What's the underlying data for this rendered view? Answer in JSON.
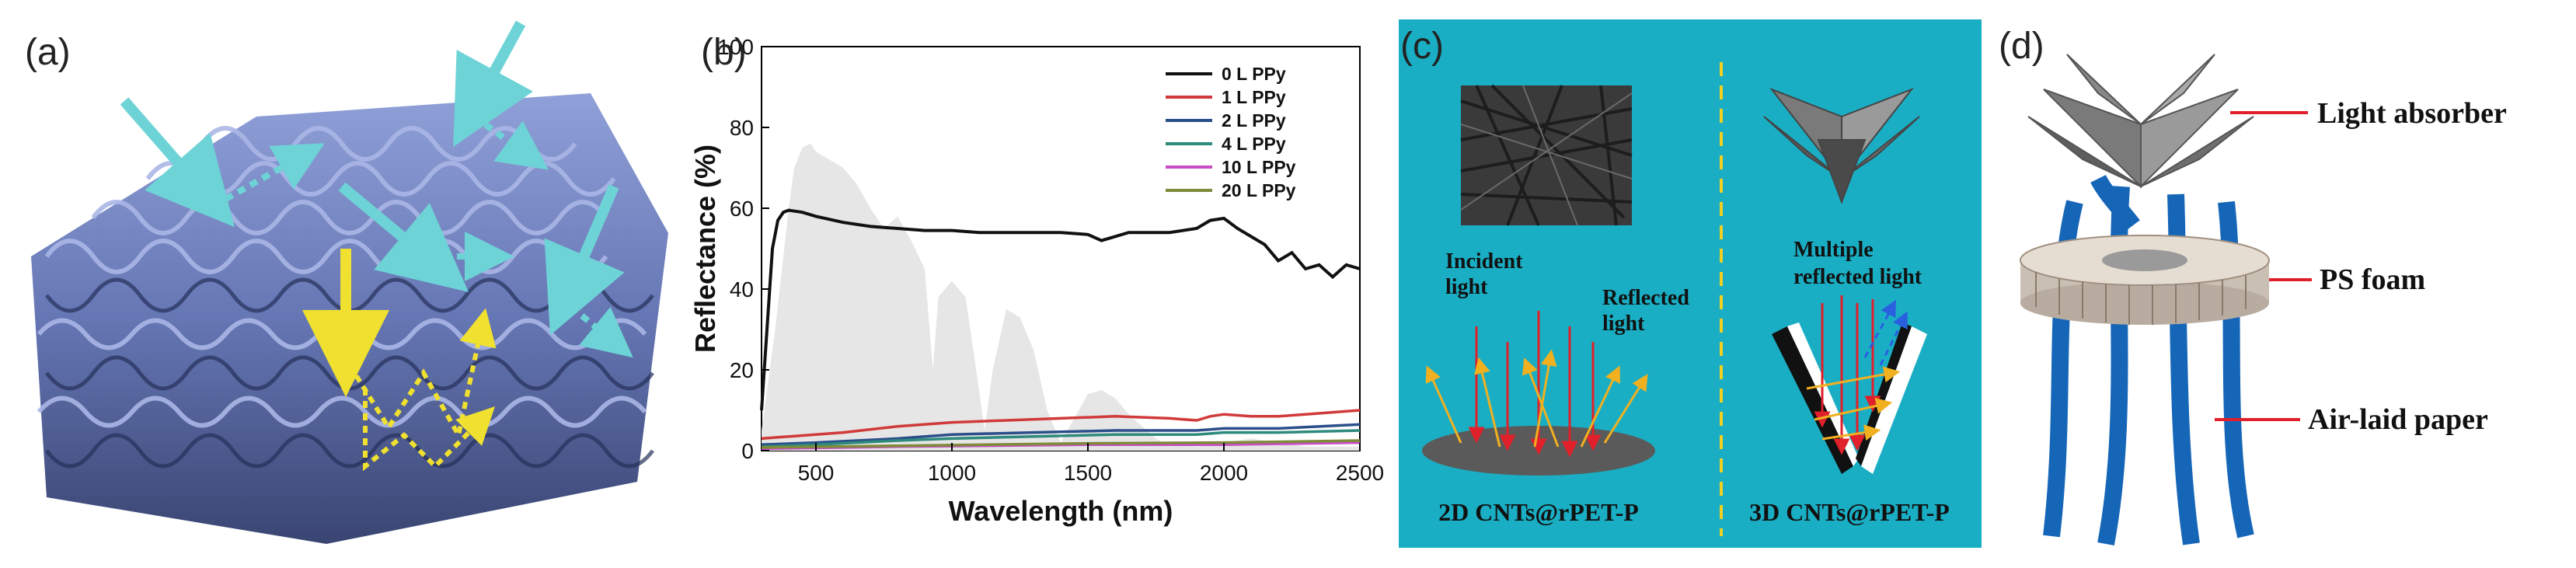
{
  "panels": {
    "a": {
      "label": "(a)"
    },
    "b": {
      "label": "(b)"
    },
    "c": {
      "label": "(c)",
      "incident": "Incident light",
      "incident_l1": "Incident",
      "incident_l2": "light",
      "reflected_l1": "Reflected",
      "reflected_l2": "light",
      "multiple_l1": "Multiple",
      "multiple_l2": "reflected light",
      "caption_2d": "2D CNTs@rPET-P",
      "caption_3d": "3D CNTs@rPET-P",
      "bg_color": "#1aaec4"
    },
    "d": {
      "label": "(d)",
      "absorber": "Light absorber",
      "foam": "PS foam",
      "paper": "Air-laid paper",
      "paper_color": "#1666b8"
    }
  },
  "chart_data": {
    "type": "line",
    "xlabel": "Wavelength (nm)",
    "ylabel": "Reflectance (%)",
    "xlim": [
      300,
      2500
    ],
    "ylim": [
      0,
      100
    ],
    "xticks": [
      500,
      1000,
      1500,
      2000,
      2500
    ],
    "yticks": [
      0,
      20,
      40,
      60,
      80,
      100
    ],
    "series": [
      {
        "name": "0 L PPy",
        "color": "#111111",
        "x": [
          300,
          320,
          340,
          360,
          380,
          400,
          450,
          500,
          600,
          700,
          800,
          900,
          1000,
          1100,
          1200,
          1300,
          1400,
          1500,
          1550,
          1600,
          1650,
          1700,
          1800,
          1900,
          1950,
          2000,
          2050,
          2100,
          2150,
          2200,
          2250,
          2300,
          2350,
          2400,
          2450,
          2500
        ],
        "values": [
          10,
          30,
          50,
          57,
          59,
          59.5,
          59,
          58,
          56.5,
          55.5,
          55,
          54.5,
          54.5,
          54,
          54,
          54,
          54,
          53.5,
          52,
          53,
          54,
          54,
          54,
          55,
          57,
          57.5,
          55,
          53,
          51,
          47,
          49,
          45,
          46,
          43,
          46,
          45
        ]
      },
      {
        "name": "1 L PPy",
        "color": "#d13a3a",
        "x": [
          300,
          400,
          600,
          800,
          1000,
          1200,
          1400,
          1600,
          1800,
          1900,
          1950,
          2000,
          2100,
          2200,
          2300,
          2400,
          2500
        ],
        "values": [
          3,
          3.5,
          4.5,
          6,
          7,
          7.5,
          8,
          8.5,
          8,
          7.5,
          8.5,
          9,
          8.5,
          8.5,
          9,
          9.5,
          10
        ]
      },
      {
        "name": "2 L PPy",
        "color": "#2b4f8a",
        "x": [
          300,
          500,
          800,
          1000,
          1300,
          1600,
          1900,
          2000,
          2200,
          2500
        ],
        "values": [
          1.5,
          2,
          3,
          4,
          4.5,
          5,
          5,
          5.5,
          5.5,
          6.5
        ]
      },
      {
        "name": "4 L PPy",
        "color": "#2e8a7c",
        "x": [
          300,
          500,
          800,
          1000,
          1300,
          1600,
          1900,
          2000,
          2200,
          2500
        ],
        "values": [
          1,
          1.5,
          2.5,
          3,
          3.5,
          4,
          4,
          4.5,
          4.5,
          5
        ]
      },
      {
        "name": "10 L PPy",
        "color": "#c84ec8",
        "x": [
          300,
          800,
          1500,
          2000,
          2500
        ],
        "values": [
          0.5,
          1,
          1.5,
          1.5,
          2
        ]
      },
      {
        "name": "20 L PPy",
        "color": "#7f8a3a",
        "x": [
          300,
          800,
          1500,
          2000,
          2500
        ],
        "values": [
          0.8,
          1.2,
          1.8,
          2,
          2.5
        ]
      }
    ],
    "background": {
      "name": "solar spectrum",
      "color": "#e6e6e6",
      "x": [
        300,
        350,
        400,
        420,
        450,
        480,
        500,
        550,
        600,
        650,
        700,
        750,
        800,
        850,
        900,
        930,
        950,
        1000,
        1050,
        1100,
        1120,
        1150,
        1200,
        1250,
        1300,
        1350,
        1400,
        1450,
        1500,
        1550,
        1600,
        1650,
        1700,
        1750,
        1800,
        1850,
        1900,
        2000,
        2100,
        2200,
        2300,
        2400,
        2500
      ],
      "values": [
        5,
        30,
        60,
        70,
        75,
        76,
        74,
        72,
        70,
        66,
        60,
        55,
        58,
        52,
        45,
        20,
        38,
        42,
        38,
        15,
        5,
        20,
        35,
        33,
        25,
        10,
        2,
        8,
        14,
        15,
        13,
        9,
        6,
        3,
        1,
        2,
        1,
        2,
        3,
        2,
        1,
        1,
        1
      ]
    }
  }
}
